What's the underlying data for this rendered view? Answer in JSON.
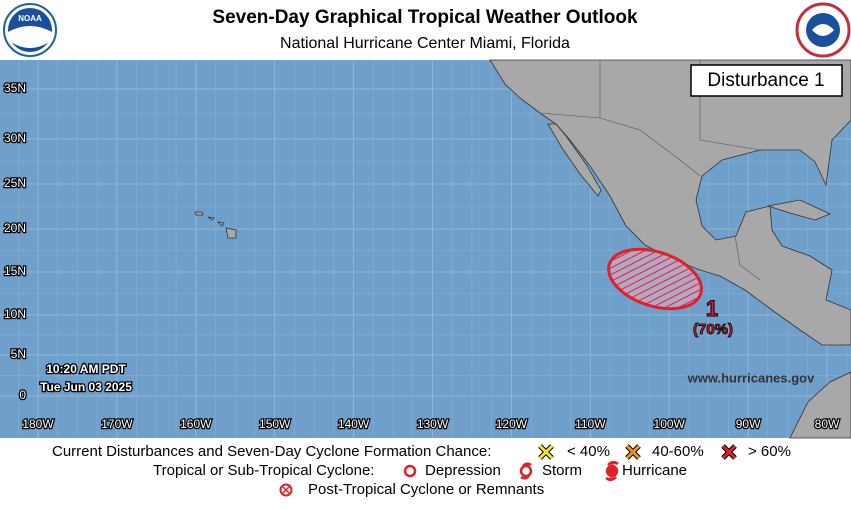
{
  "header": {
    "title": "Seven-Day Graphical Tropical Weather Outlook",
    "subtitle": "National Hurricane Center  Miami, Florida"
  },
  "map": {
    "lat_labels": [
      "35N",
      "30N",
      "25N",
      "20N",
      "15N",
      "10N",
      "5N",
      "0"
    ],
    "lon_labels": [
      "180W",
      "170W",
      "160W",
      "150W",
      "140W",
      "130W",
      "120W",
      "110W",
      "100W",
      "90W",
      "80W"
    ],
    "box_label": "Disturbance 1",
    "disturbance": {
      "number": "1",
      "chance": "(70%)"
    },
    "timestamp": {
      "time": "10:20 AM PDT",
      "date": "Tue Jun 03 2025"
    },
    "website": "www.hurricanes.gov"
  },
  "legend": {
    "row1": {
      "label": "Current Disturbances and Seven-Day Cyclone Formation Chance:",
      "low": "< 40%",
      "mid": "40-60%",
      "high": "> 60%"
    },
    "row2": {
      "label": "Tropical or Sub-Tropical Cyclone:",
      "depression": "Depression",
      "storm": "Storm",
      "hurricane": "Hurricane"
    },
    "row3": {
      "label": "Post-Tropical Cyclone or Remnants"
    }
  }
}
